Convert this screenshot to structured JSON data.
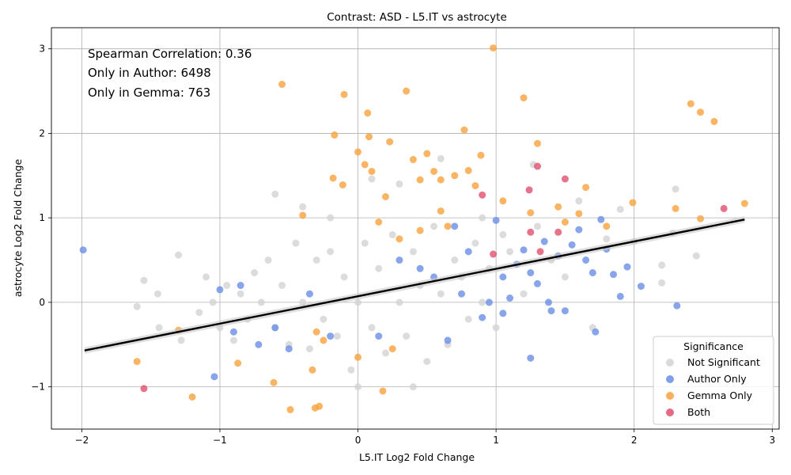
{
  "chart_data": {
    "type": "scatter",
    "title": "Contrast: ASD - L5.IT vs astrocyte",
    "xlabel": "L5.IT Log2 Fold Change",
    "ylabel": "astrocyte Log2 Fold Change",
    "xlim": [
      -2.22,
      3.05
    ],
    "ylim": [
      -1.5,
      3.25
    ],
    "x_ticks": [
      "−2",
      "−1",
      "0",
      "1",
      "2",
      "3"
    ],
    "x_tick_values": [
      -2,
      -1,
      0,
      1,
      2,
      3
    ],
    "y_ticks": [
      "−1",
      "0",
      "1",
      "2",
      "3"
    ],
    "y_tick_values": [
      -1,
      0,
      1,
      2,
      3
    ],
    "grid": true,
    "annotations": [
      "Spearman Correlation: 0.36",
      "Only in Author: 6498",
      "Only in Gemma: 763"
    ],
    "legend": {
      "title": "Significance",
      "placement": "lower-right",
      "entries": [
        "Not Significant",
        "Author Only",
        "Gemma Only",
        "Both"
      ]
    },
    "colors": {
      "Not Significant": "#d3d3d3",
      "Author Only": "#6a8ee6",
      "Gemma Only": "#f9a23d",
      "Both": "#e0506e",
      "regression": "#000000",
      "band": "#c8c8c8"
    },
    "regression_line": {
      "x": [
        -1.98,
        2.8
      ],
      "y": [
        -0.57,
        0.98
      ]
    },
    "series": [
      {
        "name": "Not Significant",
        "x": [
          -1.6,
          -1.55,
          -1.45,
          -1.44,
          -1.3,
          -1.28,
          -1.15,
          -1.1,
          -1.05,
          -1.0,
          -0.95,
          -0.9,
          -0.85,
          -0.8,
          -0.75,
          -0.7,
          -0.65,
          -0.6,
          -0.55,
          -0.5,
          -0.45,
          -0.4,
          -0.35,
          -0.3,
          -0.25,
          -0.2,
          -0.15,
          -0.1,
          -0.05,
          0.0,
          0.05,
          0.1,
          0.15,
          0.2,
          0.25,
          0.3,
          0.35,
          0.4,
          0.45,
          0.5,
          0.55,
          0.6,
          0.65,
          0.7,
          0.75,
          0.8,
          0.85,
          0.9,
          0.95,
          1.0,
          1.05,
          1.1,
          1.2,
          1.3,
          1.4,
          1.5,
          1.6,
          1.7,
          1.8,
          1.9,
          2.0,
          2.2,
          2.3,
          2.45,
          -0.4,
          -0.2,
          0.1,
          0.3,
          0.6,
          0.9,
          -0.6,
          0.0,
          0.4,
          1.27,
          2.28,
          2.2
        ],
        "y": [
          -0.05,
          0.26,
          0.1,
          -0.3,
          0.56,
          -0.45,
          -0.12,
          0.3,
          0.0,
          -0.3,
          0.2,
          -0.45,
          0.1,
          -0.2,
          0.35,
          0.0,
          0.5,
          -0.3,
          0.2,
          -0.5,
          0.7,
          0.0,
          -0.55,
          0.5,
          -0.2,
          0.6,
          -0.4,
          0.3,
          -0.8,
          0.0,
          0.7,
          -0.3,
          0.4,
          -0.6,
          0.8,
          0.0,
          -0.4,
          0.6,
          0.2,
          -0.7,
          0.9,
          0.1,
          -0.5,
          0.5,
          0.3,
          -0.2,
          0.7,
          0.0,
          0.4,
          -0.3,
          0.8,
          0.6,
          0.1,
          0.9,
          0.5,
          0.3,
          1.2,
          -0.3,
          0.75,
          1.1,
          0.72,
          0.44,
          1.34,
          0.55,
          1.13,
          1.0,
          1.46,
          1.4,
          1.7,
          1.0,
          1.28,
          -1.0,
          -1.0,
          1.63,
          0.82,
          0.23
        ]
      },
      {
        "name": "Author Only",
        "x": [
          -1.99,
          -1.04,
          -1.0,
          -0.9,
          -0.85,
          -0.72,
          -0.6,
          -0.5,
          -0.35,
          -0.2,
          0.15,
          0.3,
          0.45,
          0.55,
          0.65,
          0.7,
          0.75,
          0.8,
          0.9,
          0.95,
          1.0,
          1.05,
          1.1,
          1.15,
          1.2,
          1.25,
          1.3,
          1.35,
          1.38,
          1.4,
          1.45,
          1.5,
          1.55,
          1.6,
          1.65,
          1.7,
          1.76,
          1.8,
          1.85,
          1.9,
          1.95,
          2.05,
          2.31,
          1.25,
          1.72,
          1.05
        ],
        "y": [
          0.62,
          -0.88,
          0.15,
          -0.35,
          0.2,
          -0.5,
          -0.3,
          -0.55,
          0.1,
          -0.4,
          -0.4,
          0.5,
          0.4,
          0.3,
          -0.45,
          0.9,
          0.1,
          0.6,
          -0.18,
          0.0,
          0.97,
          0.3,
          0.05,
          0.45,
          0.62,
          0.35,
          0.22,
          0.72,
          0.0,
          -0.1,
          0.55,
          -0.1,
          0.68,
          0.86,
          0.5,
          0.35,
          0.98,
          0.63,
          0.33,
          0.07,
          0.42,
          0.19,
          -0.04,
          -0.66,
          -0.35,
          -0.13
        ]
      },
      {
        "name": "Gemma Only",
        "x": [
          -1.6,
          -1.3,
          -1.2,
          -0.87,
          -0.61,
          -0.55,
          -0.49,
          -0.33,
          -0.31,
          -0.28,
          -0.18,
          -0.17,
          -0.11,
          -0.1,
          0.0,
          0.05,
          0.07,
          0.08,
          0.1,
          0.18,
          0.23,
          0.35,
          0.4,
          0.45,
          0.5,
          0.55,
          0.6,
          0.7,
          0.77,
          0.8,
          0.85,
          0.89,
          0.98,
          1.05,
          1.2,
          1.25,
          1.3,
          1.45,
          1.5,
          1.6,
          1.65,
          1.8,
          1.99,
          2.3,
          2.41,
          2.48,
          2.48,
          2.58,
          2.8,
          -0.4,
          -0.25,
          0.2,
          0.3,
          0.6,
          -0.3,
          0.0,
          0.15,
          0.25,
          0.45,
          0.65
        ],
        "y": [
          -0.7,
          -0.33,
          -1.12,
          -0.72,
          -0.95,
          2.58,
          -1.27,
          -0.8,
          -1.25,
          -1.23,
          1.47,
          1.98,
          1.39,
          2.46,
          1.78,
          1.63,
          2.24,
          1.96,
          1.55,
          -1.05,
          1.9,
          2.5,
          1.69,
          1.45,
          1.76,
          1.55,
          1.45,
          1.5,
          2.04,
          1.56,
          1.38,
          1.74,
          3.01,
          1.2,
          2.42,
          1.06,
          1.88,
          1.13,
          0.95,
          1.05,
          1.36,
          0.9,
          1.18,
          1.11,
          2.35,
          2.25,
          0.99,
          2.14,
          1.17,
          1.03,
          -0.45,
          1.25,
          0.75,
          1.08,
          -0.35,
          -0.65,
          0.95,
          -0.55,
          0.85,
          0.9
        ]
      },
      {
        "name": "Both",
        "x": [
          -1.55,
          0.9,
          1.24,
          1.25,
          1.3,
          1.32,
          1.45,
          1.5,
          2.65,
          0.98
        ],
        "y": [
          -1.02,
          1.27,
          1.33,
          0.83,
          1.61,
          0.6,
          0.83,
          1.46,
          1.11,
          0.57
        ]
      }
    ]
  }
}
